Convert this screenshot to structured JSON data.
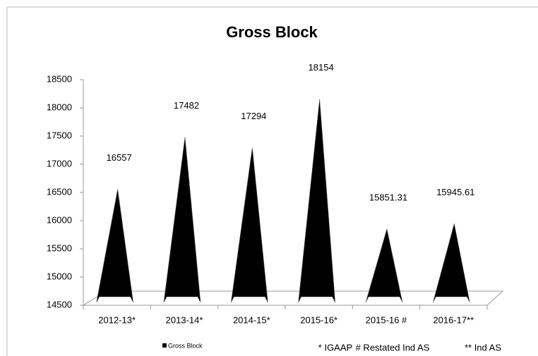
{
  "chart_data": {
    "type": "bar",
    "title": "Gross Block",
    "categories": [
      "2012-13*",
      "2013-14*",
      "2014-15*",
      "2015-16*",
      "2015-16 #",
      "2016-17**"
    ],
    "series": [
      {
        "name": "Gross Block",
        "color": "#000000",
        "values": [
          16557,
          17482,
          17294,
          18154,
          15851.31,
          15945.61
        ]
      }
    ],
    "ylim": [
      14500,
      18500
    ],
    "yticks": [
      14500,
      15000,
      15500,
      16000,
      16500,
      17000,
      17500,
      18000,
      18500
    ],
    "grid": false,
    "legend": "bottom",
    "annotations": [
      "* IGAAP",
      "# Restated Ind AS",
      "** Ind AS"
    ]
  }
}
